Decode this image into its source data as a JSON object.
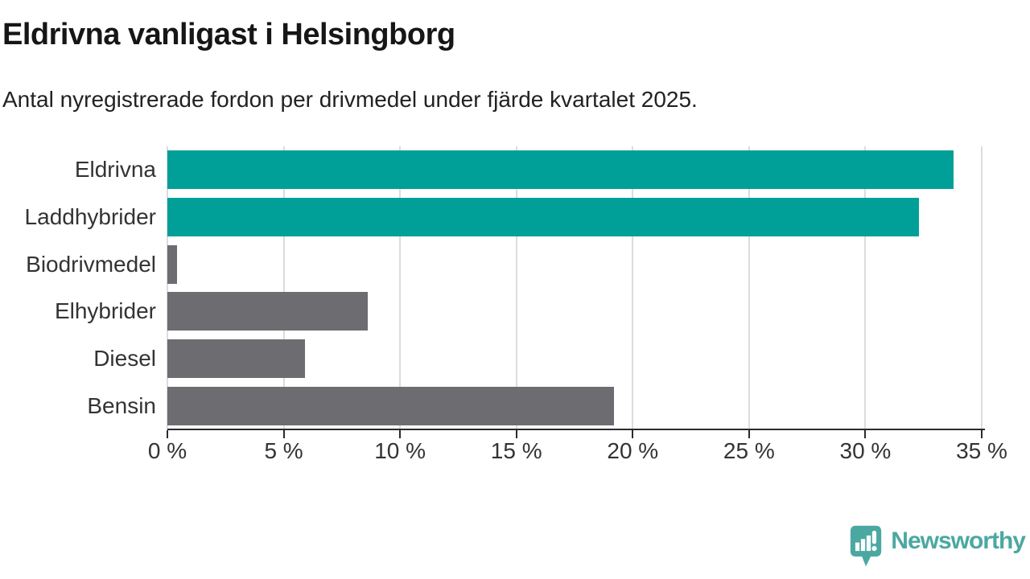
{
  "title": "Eldrivna vanligast i Helsingborg",
  "subtitle": "Antal nyregistrerade fordon per drivmedel under fjärde kvartalet 2025.",
  "colors": {
    "highlight_teal": "#00A099",
    "bar_gray": "#6C6C71",
    "gridline": "#DCDCDC",
    "axis": "#2B2B2B",
    "label_text": "#333333",
    "logo_teal": "#4BA8A1"
  },
  "chart_data": {
    "type": "bar",
    "orientation": "horizontal",
    "title": "Eldrivna vanligast i Helsingborg",
    "subtitle": "Antal nyregistrerade fordon per drivmedel under fjärde kvartalet 2025.",
    "categories": [
      "Eldrivna",
      "Laddhybrider",
      "Biodrivmedel",
      "Elhybrider",
      "Diesel",
      "Bensin"
    ],
    "values": [
      33.8,
      32.3,
      0.4,
      8.6,
      5.9,
      19.2
    ],
    "unit": "%",
    "bar_colors": [
      "#00A099",
      "#00A099",
      "#6C6C71",
      "#6C6C71",
      "#6C6C71",
      "#6C6C71"
    ],
    "xlabel": "",
    "ylabel": "",
    "xlim": [
      0,
      35
    ],
    "x_ticks": [
      0,
      5,
      10,
      15,
      20,
      25,
      30,
      35
    ],
    "x_tick_labels": [
      "0 %",
      "5 %",
      "10 %",
      "15 %",
      "20 %",
      "25 %",
      "30 %",
      "35 %"
    ],
    "grid": "vertical-gridlines-on",
    "legend": "none"
  },
  "logo": {
    "text": "Newsworthy",
    "icon": "newsworthy-speech-bubble-bar-chart-icon"
  }
}
